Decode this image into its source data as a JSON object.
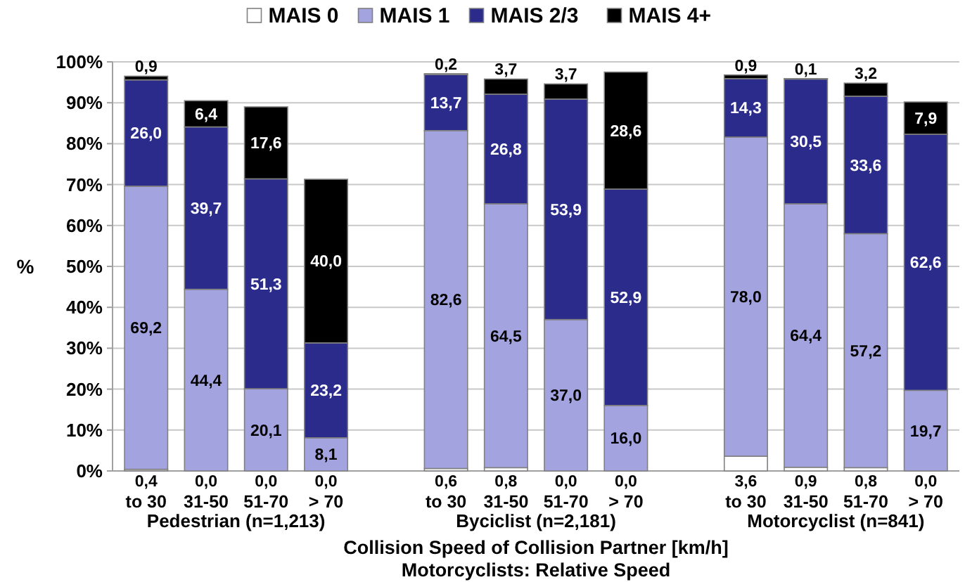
{
  "chart_data": {
    "type": "bar",
    "stacked": true,
    "legend": "top",
    "grid": "y",
    "ylabel": "%",
    "xlabel": "Collision Speed of Collision Partner [km/h]",
    "categories": [
      "to 30",
      "31-50",
      "51-70",
      "> 70",
      null,
      "to 30",
      "31-50",
      "51-70",
      "> 70",
      null,
      "to 30",
      "31-50",
      "51-70",
      "> 70"
    ],
    "ylim": [
      0,
      100
    ],
    "yticks": [
      {
        "value": 0,
        "label": "0%"
      },
      {
        "value": 10,
        "label": "10%"
      },
      {
        "value": 20,
        "label": "20%"
      },
      {
        "value": 30,
        "label": "30%"
      },
      {
        "value": 40,
        "label": "40%"
      },
      {
        "value": 50,
        "label": "50%"
      },
      {
        "value": 60,
        "label": "60%"
      },
      {
        "value": 70,
        "label": "70%"
      },
      {
        "value": 80,
        "label": "80%"
      },
      {
        "value": 90,
        "label": "90%"
      },
      {
        "value": 100,
        "label": "100%"
      }
    ],
    "series": [
      {
        "name": "MAIS 0",
        "color": "#ffffff",
        "values": [
          0.4,
          0,
          0,
          0,
          null,
          0.6,
          0.8,
          0,
          0,
          null,
          3.6,
          0.9,
          0.8,
          0
        ],
        "value_labels": [
          "0,4",
          "0,0",
          "0,0",
          "0,0",
          null,
          "0,6",
          "0,8",
          "0,0",
          "0,0",
          null,
          "3,6",
          "0,9",
          "0,8",
          "0,0"
        ]
      },
      {
        "name": "MAIS 1",
        "color": "#a3a3e0",
        "values": [
          69.2,
          44.4,
          20.1,
          8.1,
          null,
          82.6,
          64.5,
          37.0,
          16.0,
          null,
          78.0,
          64.4,
          57.2,
          19.7
        ],
        "value_labels": [
          "69,2",
          "44,4",
          "20,1",
          "8,1",
          null,
          "82,6",
          "64,5",
          "37,0",
          "16,0",
          null,
          "78,0",
          "64,4",
          "57,2",
          "19,7"
        ]
      },
      {
        "name": "MAIS 2/3",
        "color": "#2b2b8c",
        "values": [
          26.0,
          39.7,
          51.3,
          23.2,
          null,
          13.7,
          26.8,
          53.9,
          52.9,
          null,
          14.3,
          30.5,
          33.6,
          62.6
        ],
        "value_labels": [
          "26,0",
          "39,7",
          "51,3",
          "23,2",
          null,
          "13,7",
          "26,8",
          "53,9",
          "52,9",
          null,
          "14,3",
          "30,5",
          "33,6",
          "62,6"
        ]
      },
      {
        "name": "MAIS 4+",
        "color": "#000000",
        "values": [
          0.9,
          6.4,
          17.6,
          40.0,
          null,
          0.2,
          3.7,
          3.7,
          28.6,
          null,
          0.9,
          0.1,
          3.2,
          7.9
        ],
        "value_labels": [
          "0,9",
          "6,4",
          "17,6",
          "40,0",
          null,
          "0,2",
          "3,7",
          "3,7",
          "28,6",
          null,
          "0,9",
          "0,1",
          "3,2",
          "7,9"
        ]
      }
    ],
    "annotations": [
      "Pedestrian (n=1,213)",
      "Byciclist (n=2,181)",
      "Motorcyclist (n=841)",
      "Motorcyclists: Relative Speed"
    ]
  }
}
